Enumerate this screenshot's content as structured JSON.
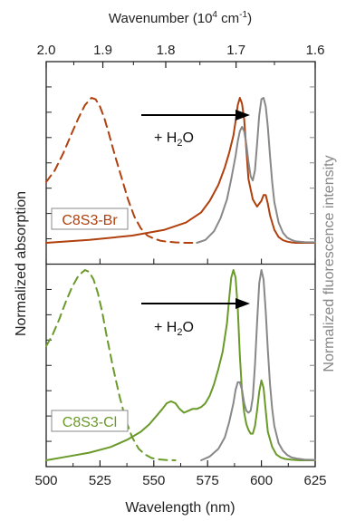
{
  "figure": {
    "top_axis_label": "Wavenumber (10",
    "top_axis_label_sup": "4",
    "top_axis_label_unit": " cm",
    "top_axis_label_unit_sup": "-1",
    "top_axis_label_close": ")",
    "top_ticks": [
      {
        "label": "2.0",
        "value": 2.0
      },
      {
        "label": "1.9",
        "value": 1.9
      },
      {
        "label": "1.8",
        "value": 1.8
      },
      {
        "label": "1.7",
        "value": 1.7
      },
      {
        "label": "1.6",
        "value": 1.6
      }
    ],
    "bottom_axis_label": "Wavelength (nm)",
    "bottom_ticks": [
      "500",
      "525",
      "550",
      "575",
      "600",
      "625"
    ],
    "left_axis_label": "Normalized absorption",
    "right_axis_label": "Normalized fluorescence intensity",
    "arrow_label_prefix": "+ H",
    "arrow_label_sub": "2",
    "arrow_label_suffix": "O",
    "colors": {
      "c8s3_br": "#b0400d",
      "c8s3_cl": "#6a9a2a",
      "fluorescence": "#888888",
      "axis": "#222222"
    }
  },
  "chart_data": [
    {
      "type": "line",
      "panel": "top",
      "label": "C8S3-Br",
      "xlabel": "Wavelength (nm)",
      "xlim": [
        500,
        625
      ],
      "x2label": "Wavenumber (10^4 cm^-1)",
      "ylabel": "Normalized absorption",
      "y2label": "Normalized fluorescence intensity",
      "ylim": [
        0,
        1.05
      ],
      "series": [
        {
          "style": "dashed",
          "color": "#b0400d",
          "x": [
            500,
            504,
            508,
            512,
            515,
            518,
            521,
            523,
            525,
            527,
            529,
            532,
            535,
            538,
            541,
            544,
            547,
            550,
            553,
            556,
            560,
            565,
            570
          ],
          "y": [
            0.42,
            0.5,
            0.62,
            0.76,
            0.86,
            0.95,
            1.0,
            0.99,
            0.94,
            0.86,
            0.76,
            0.6,
            0.45,
            0.3,
            0.18,
            0.1,
            0.05,
            0.03,
            0.015,
            0.008,
            0.003,
            0.0,
            0.0
          ]
        },
        {
          "style": "solid",
          "color": "#b0400d",
          "x": [
            500,
            520,
            540,
            555,
            565,
            572,
            576,
            580,
            583,
            585,
            587,
            588,
            589,
            590,
            591,
            592,
            593,
            594,
            596,
            598,
            600,
            601,
            602,
            603,
            604,
            606,
            608,
            610,
            612,
            614,
            616,
            620,
            625
          ],
          "y": [
            0.0,
            0.02,
            0.05,
            0.09,
            0.14,
            0.21,
            0.29,
            0.4,
            0.52,
            0.62,
            0.74,
            0.84,
            0.95,
            1.0,
            0.96,
            0.85,
            0.64,
            0.44,
            0.3,
            0.25,
            0.29,
            0.33,
            0.33,
            0.27,
            0.19,
            0.09,
            0.04,
            0.018,
            0.008,
            0.003,
            0.0,
            0.0,
            0.0
          ]
        },
        {
          "style": "solid",
          "color": "#888888",
          "x": [
            570,
            574,
            578,
            581,
            584,
            586,
            588,
            589,
            590,
            591,
            592,
            593,
            594,
            595,
            596,
            597,
            598,
            599,
            600,
            601,
            602,
            603,
            604,
            605,
            606,
            608,
            610,
            612,
            614,
            616,
            620,
            625
          ],
          "y": [
            0.0,
            0.02,
            0.08,
            0.17,
            0.3,
            0.44,
            0.6,
            0.7,
            0.77,
            0.8,
            0.77,
            0.68,
            0.56,
            0.46,
            0.43,
            0.5,
            0.68,
            0.88,
            0.99,
            1.0,
            0.94,
            0.8,
            0.6,
            0.42,
            0.28,
            0.14,
            0.07,
            0.035,
            0.02,
            0.01,
            0.005,
            0.003
          ]
        }
      ]
    },
    {
      "type": "line",
      "panel": "bottom",
      "label": "C8S3-Cl",
      "xlabel": "Wavelength (nm)",
      "xlim": [
        500,
        625
      ],
      "ylabel": "Normalized absorption",
      "y2label": "Normalized fluorescence intensity",
      "ylim": [
        0,
        1.05
      ],
      "series": [
        {
          "style": "dashed",
          "color": "#6a9a2a",
          "x": [
            500,
            503,
            506,
            509,
            512,
            515,
            518,
            520,
            522,
            524,
            526,
            528,
            531,
            534,
            537,
            540,
            543,
            546,
            549,
            552,
            556,
            560
          ],
          "y": [
            0.6,
            0.66,
            0.74,
            0.83,
            0.91,
            0.97,
            1.0,
            0.99,
            0.95,
            0.88,
            0.78,
            0.66,
            0.49,
            0.34,
            0.21,
            0.12,
            0.06,
            0.03,
            0.012,
            0.005,
            0.001,
            0.0
          ]
        },
        {
          "style": "solid",
          "color": "#6a9a2a",
          "x": [
            500,
            510,
            520,
            530,
            538,
            544,
            548,
            551,
            554,
            556,
            558,
            560,
            562,
            564,
            566,
            568,
            570,
            572,
            574,
            576,
            578,
            580,
            582,
            584,
            585,
            586,
            587,
            588,
            589,
            590,
            591,
            592,
            593,
            594,
            595,
            596,
            597,
            598,
            599,
            600,
            601,
            602,
            603,
            605,
            607,
            609,
            611,
            614,
            618,
            625
          ],
          "y": [
            0.0,
            0.02,
            0.04,
            0.07,
            0.11,
            0.15,
            0.19,
            0.23,
            0.27,
            0.3,
            0.31,
            0.3,
            0.27,
            0.25,
            0.26,
            0.27,
            0.27,
            0.28,
            0.3,
            0.34,
            0.4,
            0.48,
            0.57,
            0.72,
            0.85,
            0.96,
            1.0,
            0.96,
            0.8,
            0.55,
            0.36,
            0.25,
            0.19,
            0.16,
            0.14,
            0.14,
            0.18,
            0.26,
            0.36,
            0.42,
            0.38,
            0.26,
            0.15,
            0.07,
            0.03,
            0.015,
            0.007,
            0.003,
            0.0,
            0.0
          ]
        },
        {
          "style": "solid",
          "color": "#888888",
          "x": [
            572,
            576,
            580,
            583,
            585,
            587,
            588,
            589,
            590,
            591,
            592,
            593,
            594,
            595,
            596,
            597,
            598,
            599,
            600,
            601,
            602,
            603,
            604,
            605,
            606,
            608,
            610,
            612,
            614,
            617,
            620,
            625
          ],
          "y": [
            0.0,
            0.02,
            0.06,
            0.12,
            0.2,
            0.3,
            0.37,
            0.41,
            0.41,
            0.37,
            0.3,
            0.26,
            0.25,
            0.26,
            0.33,
            0.5,
            0.72,
            0.93,
            1.0,
            0.95,
            0.78,
            0.58,
            0.4,
            0.27,
            0.18,
            0.09,
            0.05,
            0.028,
            0.015,
            0.008,
            0.004,
            0.002
          ]
        }
      ]
    }
  ]
}
